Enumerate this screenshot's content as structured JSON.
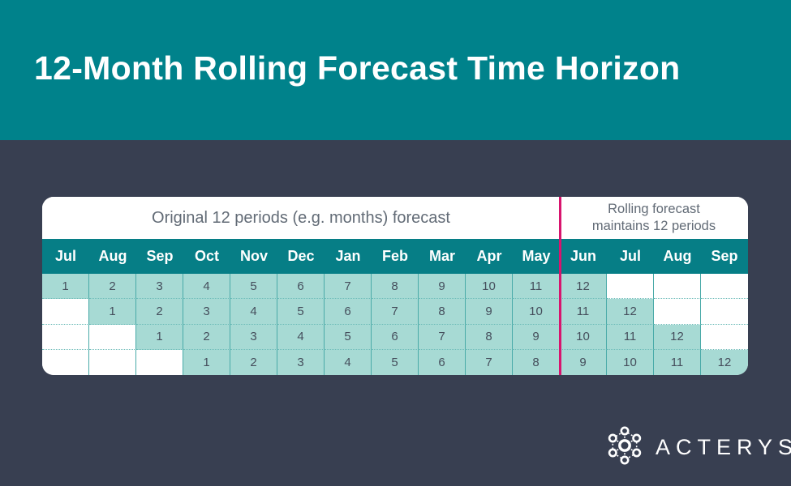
{
  "header": {
    "title": "12-Month Rolling Forecast Time Horizon"
  },
  "table": {
    "left_caption": "Original 12 periods (e.g. months) forecast",
    "right_caption_line1": "Rolling forecast",
    "right_caption_line2": "maintains 12 periods",
    "months": [
      "Jul",
      "Aug",
      "Sep",
      "Oct",
      "Nov",
      "Dec",
      "Jan",
      "Feb",
      "Mar",
      "Apr",
      "May",
      "Jun",
      "Jul",
      "Aug",
      "Sep"
    ],
    "split_after_column": 11,
    "rows": [
      [
        "1",
        "2",
        "3",
        "4",
        "5",
        "6",
        "7",
        "8",
        "9",
        "10",
        "11",
        "12",
        "",
        "",
        ""
      ],
      [
        "",
        "1",
        "2",
        "3",
        "4",
        "5",
        "6",
        "7",
        "8",
        "9",
        "10",
        "11",
        "12",
        "",
        ""
      ],
      [
        "",
        "",
        "1",
        "2",
        "3",
        "4",
        "5",
        "6",
        "7",
        "8",
        "9",
        "10",
        "11",
        "12",
        ""
      ],
      [
        "",
        "",
        "",
        "1",
        "2",
        "3",
        "4",
        "5",
        "6",
        "7",
        "8",
        "9",
        "10",
        "11",
        "12"
      ]
    ]
  },
  "logo": {
    "brand": "ACTERYS"
  },
  "colors": {
    "band_teal": "#00828b",
    "month_row_teal": "#067e86",
    "background_slate": "#383f51",
    "cell_mint": "#a7dad4",
    "divider_pink": "#d8146e",
    "cell_border_teal": "#49aaa8",
    "caption_gray": "#626b76"
  }
}
